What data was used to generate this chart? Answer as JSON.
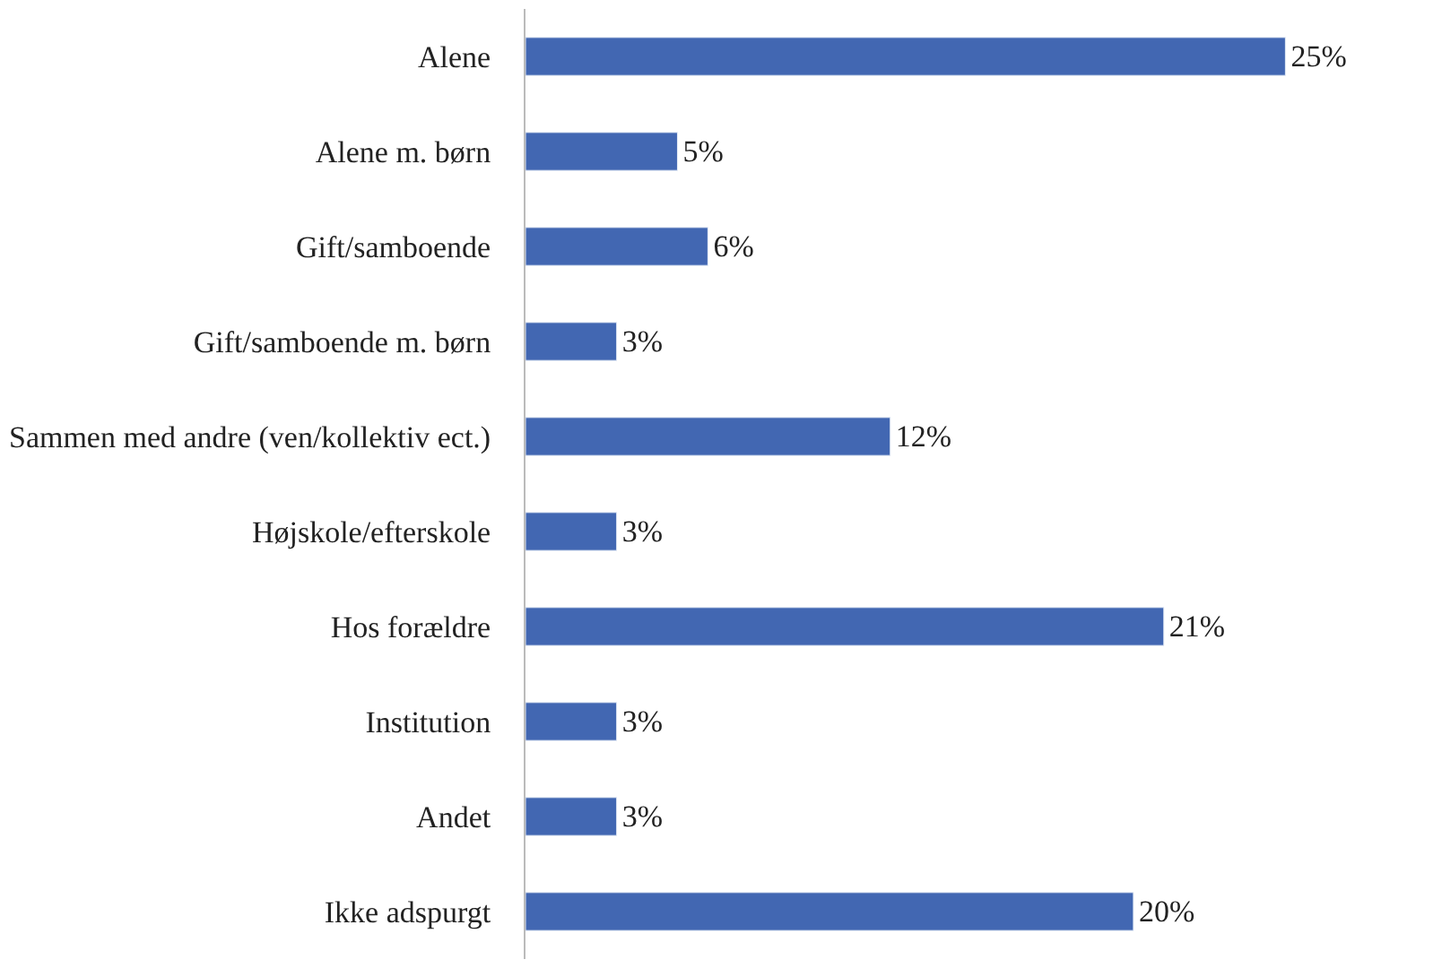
{
  "chart_data": {
    "type": "bar",
    "orientation": "horizontal",
    "tick_labels": "y",
    "legend": false,
    "categories": [
      "Alene",
      "Alene m. børn",
      "Gift/samboende",
      "Gift/samboende m. børn",
      "Sammen med andre (ven/kollektiv ect.)",
      "Højskole/efterskole",
      "Hos forældre",
      "Institution",
      "Andet",
      "Ikke adspurgt"
    ],
    "series": [
      {
        "color": "#4267b2",
        "values": [
          25,
          5,
          6,
          3,
          12,
          3,
          21,
          3,
          3,
          20
        ],
        "value_labels": [
          "25%",
          "5%",
          "6%",
          "3%",
          "12%",
          "3%",
          "21%",
          "3%",
          "3%",
          "20%"
        ]
      }
    ]
  }
}
